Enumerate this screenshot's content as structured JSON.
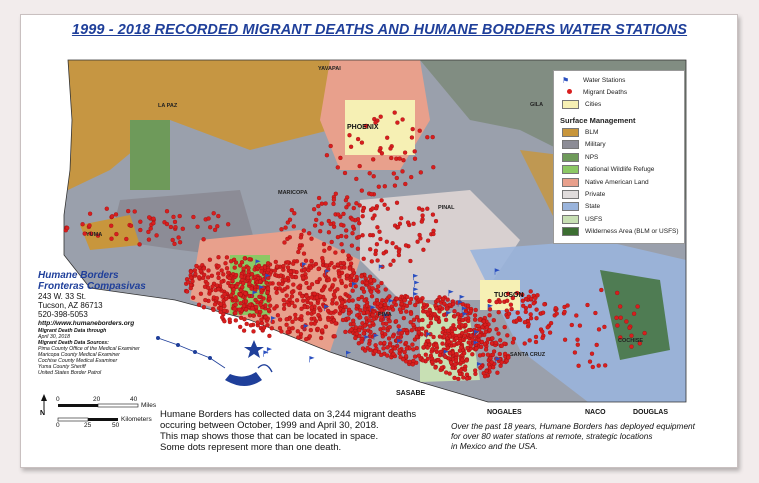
{
  "title": "1999 - 2018 RECORDED MIGRANT DEATHS AND HUMANE BORDERS WATER STATIONS",
  "legend": {
    "water_stations": "Water Stations",
    "migrant_deaths": "Migrant Deaths",
    "cities": "Cities",
    "surface_header": "Surface Management",
    "items": [
      {
        "label": "BLM",
        "color": "#c8963c"
      },
      {
        "label": "Military",
        "color": "#8c8c96"
      },
      {
        "label": "NPS",
        "color": "#6e9a5a"
      },
      {
        "label": "National Wildlife Refuge",
        "color": "#8cc864"
      },
      {
        "label": "Native American Land",
        "color": "#e8a08c"
      },
      {
        "label": "Private",
        "color": "#e0dcdc"
      },
      {
        "label": "State",
        "color": "#9ab4dc"
      },
      {
        "label": "USFS",
        "color": "#c8e0b4"
      },
      {
        "label": "Wilderness Area (BLM or USFS)",
        "color": "#3c6e32"
      }
    ]
  },
  "org": {
    "name1": "Humane Borders",
    "name2": "Fronteras Compasivas",
    "address1": "243 W. 33 St.",
    "address2": "Tucson, AZ 86713",
    "phone": "520-398-5053",
    "url": "http://www.humaneborders.org",
    "death_data_1": "Migrant Death Data through",
    "death_data_2": "April 30, 2018",
    "sources_header": "Migrant Death Data Sources:",
    "sources": [
      "Pima County Office of the Medical Examiner",
      "Maricopa County Medical Examiner",
      "Cochise County Medical Examiner",
      "Yuma County Sheriff",
      "United States Border Patrol"
    ]
  },
  "scale": {
    "miles_ticks": [
      "0",
      "20",
      "40"
    ],
    "miles_label": "Miles",
    "km_ticks": [
      "0",
      "25",
      "50"
    ],
    "km_label": "Kilometers",
    "north": "N"
  },
  "caption_left": [
    "Humane Borders has collected data on 3,244 migrant deaths",
    "occuring between October, 1999 and April 30, 2018.",
    "This map shows those that can be located in space.",
    "Some dots represent more than one death."
  ],
  "caption_right": [
    "Over the past 18 years, Humane Borders has deployed equipment",
    "for over 80 water stations at remote, strategic locations",
    "in Mexico and the USA."
  ],
  "places": {
    "phoenix": "PHOENIX",
    "tucson": "TUCSON",
    "yuma": "YUMA",
    "nogales": "NOGALES",
    "naco": "NACO",
    "douglas": "DOUGLAS",
    "sasabe": "SASABE",
    "la_paz": "LA PAZ",
    "maricopa": "MARICOPA",
    "pinal": "PINAL",
    "pima": "PIMA",
    "cochise": "COCHISE",
    "santa_cruz": "SANTA CRUZ",
    "gila": "GILA",
    "yavapai": "YAVAPAI"
  },
  "colors": {
    "title": "#1f3f9a",
    "death_dot": "#d81e1e",
    "water_station": "#2a4fc0"
  }
}
